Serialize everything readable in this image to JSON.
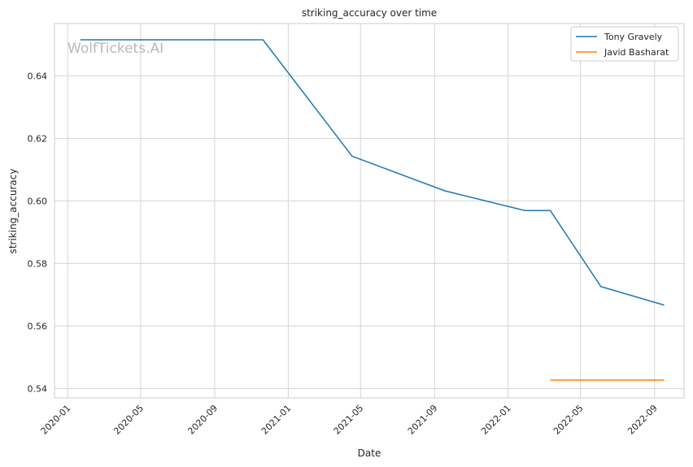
{
  "chart_data": {
    "type": "line",
    "title": "striking_accuracy over time",
    "xlabel": "Date",
    "ylabel": "striking_accuracy",
    "watermark": "WolfTickets.AI",
    "x_ticks": [
      "2020-01",
      "2020-05",
      "2020-09",
      "2021-01",
      "2021-05",
      "2021-09",
      "2022-01",
      "2022-05",
      "2022-09"
    ],
    "y_ticks": [
      "0.54",
      "0.56",
      "0.58",
      "0.60",
      "0.62",
      "0.64"
    ],
    "xlim": [
      "2019-12-10",
      "2022-10-20"
    ],
    "ylim": [
      0.537,
      0.6567
    ],
    "grid": true,
    "legend_position": "top-right",
    "series": [
      {
        "name": "Tony Gravely",
        "color": "#1f77b4",
        "x": [
          "2020-01-22",
          "2020-11-20",
          "2021-04-17",
          "2021-09-18",
          "2022-01-29",
          "2022-03-12",
          "2022-06-04",
          "2022-09-17"
        ],
        "y": [
          0.6515,
          0.6515,
          0.6143,
          0.6032,
          0.5969,
          0.5969,
          0.5726,
          0.5667
        ]
      },
      {
        "name": "Javid Basharat",
        "color": "#ff7f0e",
        "x": [
          "2022-03-12",
          "2022-09-17"
        ],
        "y": [
          0.5427,
          0.5427
        ]
      }
    ]
  }
}
